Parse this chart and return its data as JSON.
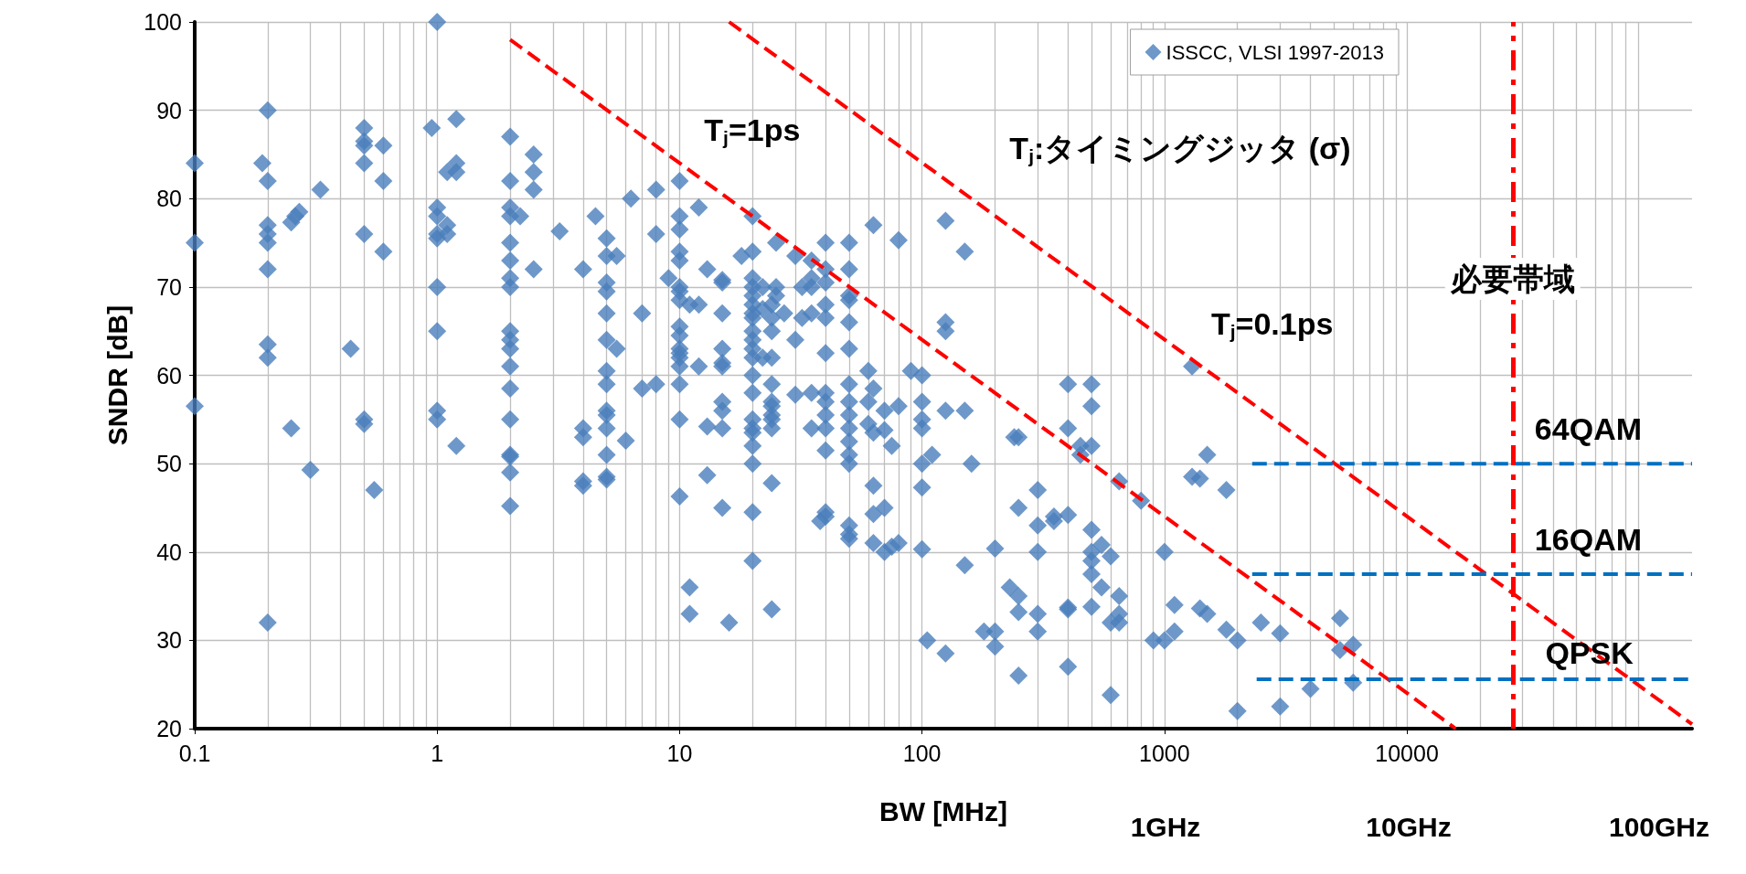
{
  "chart_data": {
    "type": "scatter",
    "xlabel": "BW [MHz]",
    "ylabel": "SNDR [dB]",
    "log": "x",
    "grid": true,
    "legend": "top right",
    "marker": "diamond",
    "xlim": [
      0.1,
      150000
    ],
    "xticks": [
      0.1,
      1,
      10,
      100,
      1000,
      10000
    ],
    "ylim": [
      20,
      100
    ],
    "yticks": [
      20,
      30,
      40,
      50,
      60,
      70,
      80,
      90,
      100
    ],
    "series": [
      {
        "name": "ISSCC, VLSI 1997-2013",
        "color": "#4a7ebb",
        "x": [
          0.1,
          0.1,
          0.1,
          0.19,
          0.2,
          0.2,
          0.2,
          0.2,
          0.2,
          0.2,
          0.2,
          0.2,
          0.2,
          0.25,
          0.25,
          0.26,
          0.27,
          0.3,
          0.33,
          0.44,
          0.5,
          0.5,
          0.5,
          0.5,
          0.5,
          0.5,
          0.5,
          0.55,
          0.6,
          0.6,
          0.6,
          0.95,
          1,
          1,
          1,
          1,
          1,
          1,
          1,
          1,
          1,
          1.1,
          1.1,
          1.1,
          1.2,
          1.2,
          1.2,
          1.2,
          2,
          2,
          2,
          2,
          2,
          2,
          2,
          2,
          2,
          2,
          2,
          2,
          2,
          2,
          2,
          2,
          2,
          2,
          2.2,
          2.5,
          2.5,
          2.5,
          2.5,
          3.2,
          4,
          4,
          4,
          4,
          4,
          4.5,
          5,
          5,
          5,
          5,
          5,
          5,
          5,
          5,
          5,
          5,
          5,
          5,
          5,
          5,
          5.5,
          5.5,
          6,
          6.3,
          7,
          7,
          8,
          8,
          8,
          9,
          10,
          10,
          10,
          10,
          10,
          10,
          10,
          10,
          10,
          10,
          10,
          10,
          10,
          10,
          10,
          10,
          10,
          11,
          11,
          11,
          12,
          12,
          12,
          13,
          13,
          13,
          15,
          15,
          15,
          15,
          15,
          15,
          15,
          15,
          15,
          15,
          16,
          18,
          20,
          20,
          20,
          20,
          20,
          20,
          20,
          20,
          20,
          20,
          20,
          20,
          20,
          20,
          20,
          20,
          20,
          20,
          20,
          20,
          20,
          22,
          22,
          22,
          24,
          24,
          24,
          24,
          24,
          24,
          24,
          24,
          24,
          24,
          24,
          24,
          25,
          25,
          25,
          27,
          30,
          30,
          30,
          32,
          32,
          35,
          35,
          35,
          35,
          35,
          35,
          38,
          40,
          40,
          40,
          40,
          40,
          40,
          40,
          40,
          40,
          40,
          40,
          40,
          40,
          50,
          50,
          50,
          50,
          50,
          50,
          50,
          50,
          50,
          50,
          50,
          50,
          50,
          50,
          50,
          50,
          60,
          60,
          60,
          63,
          63,
          63,
          63,
          63,
          63,
          70,
          70,
          70,
          70,
          75,
          75,
          80,
          80,
          80,
          90,
          100,
          100,
          100,
          100,
          100,
          100,
          100,
          105,
          110,
          125,
          125,
          125,
          125,
          125,
          150,
          150,
          150,
          160,
          180,
          200,
          200,
          200,
          230,
          240,
          250,
          250,
          250,
          250,
          250,
          300,
          300,
          300,
          300,
          300,
          350,
          350,
          400,
          400,
          400,
          400,
          400,
          400,
          450,
          450,
          500,
          500,
          500,
          500,
          500,
          500,
          500,
          500,
          550,
          550,
          600,
          600,
          600,
          650,
          650,
          650,
          650,
          800,
          900,
          1000,
          1000,
          1100,
          1100,
          1300,
          1300,
          1400,
          1400,
          1500,
          1500,
          1800,
          1800,
          2000,
          2000,
          2500,
          3000,
          3000,
          4000,
          5300,
          5300,
          6000,
          6000
        ],
        "values": [
          84,
          75,
          56.5,
          84,
          90,
          82,
          77,
          76,
          75,
          72,
          63.5,
          62,
          32,
          54,
          77.3,
          78,
          78.5,
          49.3,
          81,
          63,
          88,
          86.5,
          86,
          84,
          76,
          55,
          54.5,
          47,
          86,
          82,
          74,
          88,
          100,
          79,
          78,
          76,
          75.5,
          70,
          65,
          56,
          55,
          83,
          77,
          76,
          89,
          84,
          83,
          52,
          87,
          82,
          79,
          78,
          75,
          73,
          71,
          70,
          65,
          64,
          63,
          61,
          58.5,
          55,
          51,
          50.8,
          49,
          45.2,
          78,
          85,
          83,
          81,
          72,
          76.3,
          72,
          54,
          53,
          48,
          47.5,
          78,
          75.5,
          73.5,
          70.5,
          69.5,
          67,
          64,
          60.5,
          59,
          56,
          55.5,
          54,
          51,
          48.5,
          48.2,
          73.5,
          63,
          52.6,
          80,
          58.5,
          67,
          59,
          81,
          76,
          71,
          82,
          78,
          76.5,
          74,
          73,
          70,
          69.5,
          68.5,
          65.5,
          64.5,
          63,
          62.5,
          62,
          61,
          59,
          55,
          46.3,
          68,
          36,
          33,
          79,
          68,
          61,
          72,
          54.2,
          48.7,
          70.8,
          70.5,
          67,
          63,
          61.4,
          61,
          57,
          56,
          54,
          45,
          32,
          73.5,
          78,
          74,
          71,
          70,
          69,
          68,
          67,
          66.5,
          65,
          64,
          63,
          62,
          60,
          58,
          55,
          54,
          53.5,
          52,
          50,
          44.5,
          39,
          70,
          67.5,
          62,
          68,
          66.5,
          65,
          62,
          59,
          57,
          56.5,
          55.5,
          55,
          54,
          47.8,
          33.5,
          75,
          70,
          69,
          67,
          73.5,
          64,
          57.8,
          70,
          66.5,
          73,
          71,
          70,
          67,
          58,
          54,
          43.5,
          75,
          72,
          70.5,
          68,
          66.5,
          62.5,
          58,
          57,
          55.5,
          54,
          51.5,
          44.5,
          44,
          75,
          72,
          69,
          68.5,
          66,
          63,
          59,
          57,
          55.5,
          54,
          52.5,
          51,
          50,
          43,
          42,
          41.5,
          60.5,
          57,
          54.5,
          77,
          58.5,
          53.5,
          47.5,
          44.3,
          41,
          56,
          53.8,
          45,
          40,
          52,
          40.6,
          75.3,
          56.5,
          41,
          60.5,
          60,
          57,
          55,
          54,
          50,
          47.3,
          40.3,
          30,
          51,
          77.5,
          66,
          65,
          56,
          28.5,
          74,
          56,
          38.5,
          50,
          31,
          40.4,
          31,
          29.3,
          36,
          53,
          53,
          45,
          35,
          33.2,
          26,
          47,
          43,
          40,
          33,
          31,
          44,
          43.5,
          59,
          54,
          44.2,
          33.7,
          33.5,
          27,
          51,
          52,
          59,
          56.5,
          52,
          42.5,
          40,
          39,
          37.5,
          33.8,
          36,
          40.8,
          39.5,
          32,
          23.8,
          48,
          35,
          33,
          32,
          45.8,
          30,
          40,
          30,
          34,
          31,
          61,
          48.5,
          48.3,
          33.6,
          51,
          33,
          47,
          31.2,
          30,
          22,
          32,
          30.8,
          22.5,
          24.5,
          32.5,
          28.9,
          29.5,
          25.2
        ]
      },
      {
        "name": "T$_{j}$=1ps",
        "type": "line",
        "color": "#ff0000",
        "line_style": "dashed",
        "marker": "none",
        "x": [
          2,
          15900
        ],
        "values": [
          98,
          20
        ]
      },
      {
        "name": "T$_{j}$=0.1ps",
        "type": "line",
        "color": "#ff0000",
        "line_style": "dashed",
        "marker": "none",
        "x": [
          16,
          150000
        ],
        "values": [
          100,
          20.5
        ]
      },
      {
        "name": "64QAM",
        "type": "line",
        "color": "#0070c0",
        "line_style": "dashed",
        "marker": "none",
        "x": [
          2300,
          150000
        ],
        "values": [
          50,
          50
        ]
      },
      {
        "name": "16QAM",
        "type": "line",
        "color": "#0070c0",
        "line_style": "dashed",
        "marker": "none",
        "x": [
          2300,
          150000
        ],
        "values": [
          37.5,
          37.5
        ]
      },
      {
        "name": "QPSK",
        "type": "line",
        "color": "#0070c0",
        "line_style": "dashed",
        "marker": "none",
        "x": [
          2400,
          150000
        ],
        "values": [
          25.6,
          25.6
        ]
      }
    ],
    "ref_lines": [
      {
        "axis": "x",
        "value": 27300,
        "label": "必要帯域",
        "color": "#ff0000",
        "line_style": "dashed"
      }
    ],
    "annotations": [
      "T$_{j}$:タイミングジッタ (σ)",
      "1GHz",
      "10GHz",
      "100GHz"
    ]
  }
}
